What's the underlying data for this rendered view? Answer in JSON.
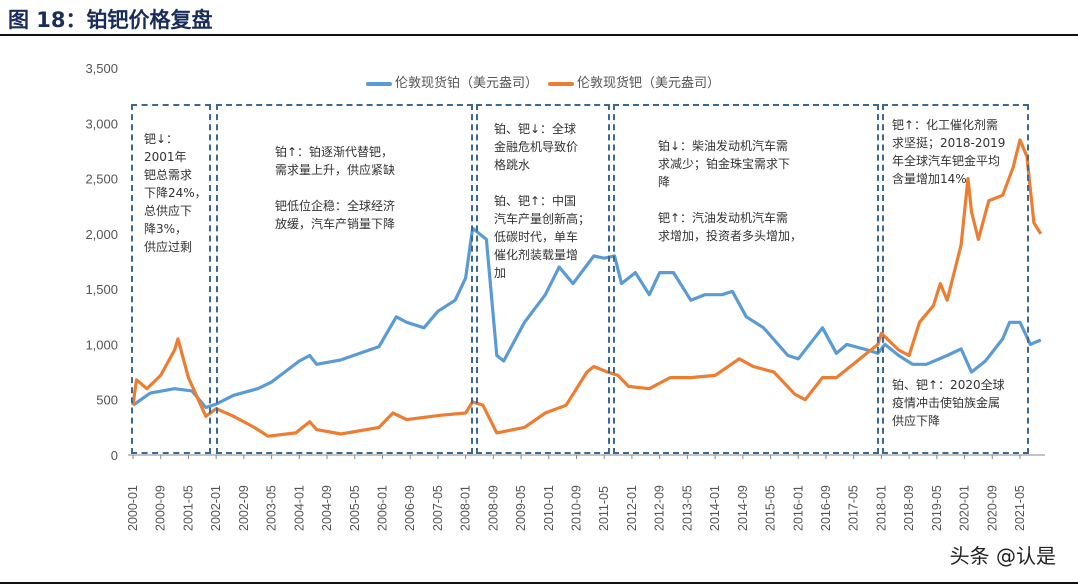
{
  "title": "图 18：铂钯价格复盘",
  "watermark": "头条 @认是",
  "chart_data": {
    "type": "line",
    "title": "",
    "xlabel": "",
    "ylabel": "",
    "ylim": [
      0,
      3500
    ],
    "yticks": [
      "0",
      "500",
      "1,000",
      "1,500",
      "2,000",
      "2,500",
      "3,000",
      "3,500"
    ],
    "ytick_values": [
      0,
      500,
      1000,
      1500,
      2000,
      2500,
      3000,
      3500
    ],
    "xticks": [
      "2000-01",
      "2000-09",
      "2001-05",
      "2002-01",
      "2002-09",
      "2003-05",
      "2004-01",
      "2004-09",
      "2005-05",
      "2006-01",
      "2006-09",
      "2007-05",
      "2008-01",
      "2008-09",
      "2009-05",
      "2010-01",
      "2010-09",
      "2011-05",
      "2012-01",
      "2012-09",
      "2013-05",
      "2014-01",
      "2014-09",
      "2015-05",
      "2016-01",
      "2016-09",
      "2017-05",
      "2018-01",
      "2018-09",
      "2019-05",
      "2020-01",
      "2020-09",
      "2021-05"
    ],
    "grid": false,
    "legend_position": "top",
    "series": [
      {
        "name": "伦敦现货铂（美元盎司）",
        "color": "#5b9bd5",
        "points": [
          [
            "2000-01",
            450
          ],
          [
            "2000-06",
            560
          ],
          [
            "2001-01",
            600
          ],
          [
            "2001-06",
            580
          ],
          [
            "2001-10",
            430
          ],
          [
            "2002-01",
            460
          ],
          [
            "2002-06",
            540
          ],
          [
            "2003-01",
            600
          ],
          [
            "2003-05",
            660
          ],
          [
            "2004-01",
            850
          ],
          [
            "2004-04",
            900
          ],
          [
            "2004-06",
            820
          ],
          [
            "2005-01",
            860
          ],
          [
            "2005-12",
            980
          ],
          [
            "2006-05",
            1250
          ],
          [
            "2006-08",
            1200
          ],
          [
            "2007-01",
            1150
          ],
          [
            "2007-05",
            1300
          ],
          [
            "2007-10",
            1400
          ],
          [
            "2008-01",
            1600
          ],
          [
            "2008-03",
            2050
          ],
          [
            "2008-05",
            2000
          ],
          [
            "2008-07",
            1950
          ],
          [
            "2008-10",
            900
          ],
          [
            "2008-12",
            850
          ],
          [
            "2009-06",
            1200
          ],
          [
            "2009-12",
            1450
          ],
          [
            "2010-04",
            1700
          ],
          [
            "2010-08",
            1550
          ],
          [
            "2011-02",
            1800
          ],
          [
            "2011-05",
            1780
          ],
          [
            "2011-08",
            1800
          ],
          [
            "2011-10",
            1550
          ],
          [
            "2012-02",
            1650
          ],
          [
            "2012-06",
            1450
          ],
          [
            "2012-09",
            1650
          ],
          [
            "2013-01",
            1650
          ],
          [
            "2013-06",
            1400
          ],
          [
            "2013-10",
            1450
          ],
          [
            "2014-03",
            1450
          ],
          [
            "2014-06",
            1480
          ],
          [
            "2014-10",
            1250
          ],
          [
            "2015-03",
            1150
          ],
          [
            "2015-10",
            900
          ],
          [
            "2016-01",
            870
          ],
          [
            "2016-08",
            1150
          ],
          [
            "2016-12",
            920
          ],
          [
            "2017-03",
            1000
          ],
          [
            "2017-09",
            950
          ],
          [
            "2017-12",
            920
          ],
          [
            "2018-02",
            1000
          ],
          [
            "2018-06",
            900
          ],
          [
            "2018-10",
            820
          ],
          [
            "2019-02",
            820
          ],
          [
            "2019-08",
            900
          ],
          [
            "2019-12",
            960
          ],
          [
            "2020-03",
            750
          ],
          [
            "2020-07",
            850
          ],
          [
            "2020-12",
            1050
          ],
          [
            "2021-02",
            1200
          ],
          [
            "2021-05",
            1200
          ],
          [
            "2021-08",
            1000
          ],
          [
            "2021-11",
            1040
          ]
        ]
      },
      {
        "name": "伦敦现货钯（美元盎司）",
        "color": "#ed7d31",
        "points": [
          [
            "2000-01",
            450
          ],
          [
            "2000-02",
            680
          ],
          [
            "2000-05",
            600
          ],
          [
            "2000-09",
            720
          ],
          [
            "2001-01",
            950
          ],
          [
            "2001-02",
            1050
          ],
          [
            "2001-05",
            700
          ],
          [
            "2001-10",
            350
          ],
          [
            "2002-01",
            420
          ],
          [
            "2002-06",
            350
          ],
          [
            "2002-12",
            250
          ],
          [
            "2003-04",
            170
          ],
          [
            "2003-12",
            200
          ],
          [
            "2004-04",
            300
          ],
          [
            "2004-06",
            230
          ],
          [
            "2005-01",
            190
          ],
          [
            "2005-12",
            250
          ],
          [
            "2006-04",
            380
          ],
          [
            "2006-08",
            320
          ],
          [
            "2007-06",
            360
          ],
          [
            "2008-01",
            380
          ],
          [
            "2008-03",
            480
          ],
          [
            "2008-06",
            450
          ],
          [
            "2008-10",
            200
          ],
          [
            "2009-06",
            250
          ],
          [
            "2009-12",
            380
          ],
          [
            "2010-06",
            450
          ],
          [
            "2010-12",
            750
          ],
          [
            "2011-02",
            800
          ],
          [
            "2011-06",
            750
          ],
          [
            "2011-09",
            720
          ],
          [
            "2011-12",
            620
          ],
          [
            "2012-06",
            600
          ],
          [
            "2012-12",
            700
          ],
          [
            "2013-06",
            700
          ],
          [
            "2014-01",
            720
          ],
          [
            "2014-08",
            870
          ],
          [
            "2014-12",
            800
          ],
          [
            "2015-06",
            750
          ],
          [
            "2015-12",
            550
          ],
          [
            "2016-03",
            500
          ],
          [
            "2016-08",
            700
          ],
          [
            "2016-12",
            700
          ],
          [
            "2017-06",
            850
          ],
          [
            "2017-12",
            1000
          ],
          [
            "2018-01",
            1100
          ],
          [
            "2018-06",
            950
          ],
          [
            "2018-09",
            900
          ],
          [
            "2018-12",
            1200
          ],
          [
            "2019-04",
            1350
          ],
          [
            "2019-06",
            1550
          ],
          [
            "2019-08",
            1400
          ],
          [
            "2019-12",
            1900
          ],
          [
            "2020-02",
            2500
          ],
          [
            "2020-03",
            2200
          ],
          [
            "2020-05",
            1950
          ],
          [
            "2020-08",
            2300
          ],
          [
            "2020-12",
            2350
          ],
          [
            "2021-03",
            2600
          ],
          [
            "2021-05",
            2850
          ],
          [
            "2021-07",
            2700
          ],
          [
            "2021-09",
            2100
          ],
          [
            "2021-11",
            2000
          ]
        ]
      }
    ],
    "annotations": [
      "钯↓：\n2001年\n钯总需求\n下降24%，\n总供应下\n降3%，\n供应过剩",
      "铂↑：铂逐渐代替钯，\n需求量上升，供应紧缺\n\n钯低位企稳：全球经济\n放缓，汽车产销量下降",
      "铂、钯↓：全球\n金融危机导致价\n格跳水\n\n铂、钯↑：中国\n汽车产量创新高；\n低碳时代，单车\n催化剂装载量增\n加",
      "铂↓：柴油发动机汽车需\n求减少；铂金珠宝需求下\n降\n\n钯↑：汽油发动机汽车需\n求增加，投资者多头增加，",
      "钯↑：化工催化剂需\n求坚挺；2018-2019\n年全球汽车钯金平均\n含量增加14%",
      "铂、钯↑：2020全球\n疫情冲击使铂族金属\n供应下降"
    ]
  }
}
